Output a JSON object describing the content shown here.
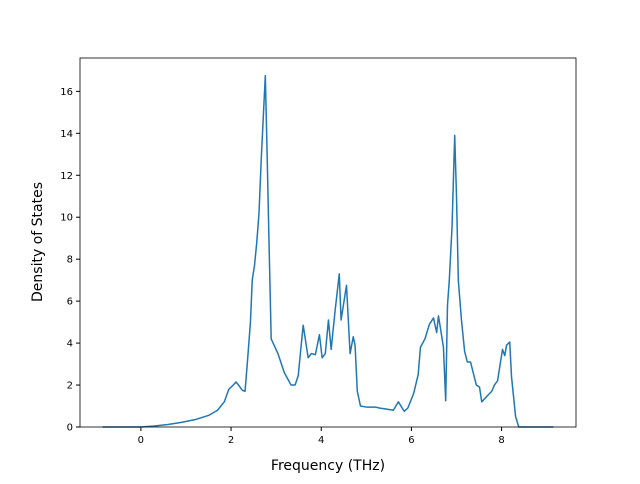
{
  "chart_data": {
    "type": "line",
    "xlabel": "Frequency (THz)",
    "ylabel": "Density of States",
    "x": [
      -0.85,
      0,
      0.3,
      0.6,
      0.9,
      1.2,
      1.5,
      1.7,
      1.85,
      1.95,
      2.05,
      2.11,
      2.2,
      2.25,
      2.31,
      2.37,
      2.43,
      2.47,
      2.52,
      2.57,
      2.62,
      2.67,
      2.72,
      2.76,
      2.8,
      2.84,
      2.89,
      3.04,
      3.18,
      3.33,
      3.42,
      3.49,
      3.56,
      3.6,
      3.71,
      3.78,
      3.87,
      3.96,
      4.02,
      4.09,
      4.16,
      4.22,
      4.31,
      4.4,
      4.44,
      4.56,
      4.64,
      4.71,
      4.75,
      4.8,
      4.87,
      5.0,
      5.2,
      5.3,
      5.45,
      5.6,
      5.71,
      5.84,
      5.92,
      6.05,
      6.15,
      6.2,
      6.3,
      6.4,
      6.49,
      6.56,
      6.6,
      6.71,
      6.76,
      6.8,
      6.84,
      6.9,
      6.96,
      7.0,
      7.04,
      7.11,
      7.18,
      7.24,
      7.31,
      7.44,
      7.51,
      7.56,
      7.69,
      7.78,
      7.84,
      7.91,
      8.02,
      8.07,
      8.11,
      8.18,
      8.22,
      8.31,
      8.38,
      8.6,
      9.15
    ],
    "values": [
      0,
      0,
      0.05,
      0.12,
      0.22,
      0.35,
      0.55,
      0.8,
      1.2,
      1.8,
      2.0,
      2.15,
      1.9,
      1.75,
      1.7,
      3.3,
      5.0,
      7.0,
      7.7,
      8.8,
      10.2,
      12.8,
      15.0,
      16.75,
      13.0,
      9.0,
      4.2,
      3.5,
      2.6,
      2.0,
      2.0,
      2.45,
      4.0,
      4.85,
      3.3,
      3.5,
      3.45,
      4.4,
      3.3,
      3.5,
      5.1,
      3.7,
      5.6,
      7.3,
      5.1,
      6.75,
      3.5,
      4.3,
      3.9,
      1.7,
      1.0,
      0.95,
      0.95,
      0.9,
      0.85,
      0.8,
      1.2,
      0.75,
      0.9,
      1.6,
      2.5,
      3.8,
      4.2,
      4.9,
      5.2,
      4.5,
      5.3,
      3.8,
      1.25,
      5.8,
      7.0,
      9.5,
      13.9,
      11.0,
      7.0,
      5.1,
      3.6,
      3.1,
      3.1,
      2.0,
      1.9,
      1.2,
      1.5,
      1.7,
      2.0,
      2.2,
      3.7,
      3.4,
      3.9,
      4.05,
      2.4,
      0.5,
      0,
      0,
      0
    ],
    "color": "#1f77b4",
    "xlim": [
      -1.35,
      9.65
    ],
    "xticks": [
      0,
      2,
      4,
      6,
      8
    ],
    "ylim": [
      0,
      17.59
    ],
    "yticks": [
      0,
      2,
      4,
      6,
      8,
      10,
      12,
      14,
      16
    ]
  }
}
